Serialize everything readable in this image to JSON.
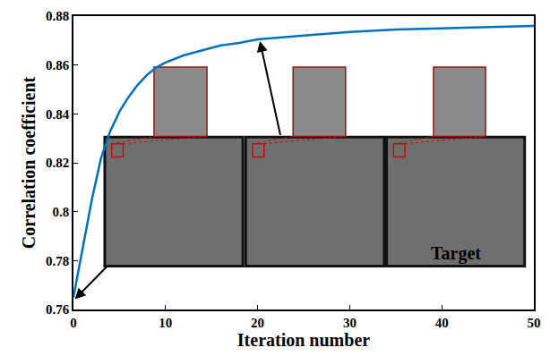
{
  "chart_data": {
    "type": "line",
    "x_label": "Iteration number",
    "y_label": "Correlation coefficient",
    "x": [
      0,
      1,
      2,
      3,
      4,
      5,
      6,
      7,
      8,
      9,
      10,
      12,
      14,
      16,
      18,
      20,
      25,
      30,
      35,
      40,
      45,
      50
    ],
    "series": [
      {
        "color": "#0072bd",
        "values": [
          0.765,
          0.785,
          0.805,
          0.822,
          0.833,
          0.841,
          0.847,
          0.852,
          0.856,
          0.859,
          0.861,
          0.864,
          0.866,
          0.868,
          0.869,
          0.8705,
          0.872,
          0.8735,
          0.8745,
          0.875,
          0.8755,
          0.876
        ]
      }
    ],
    "xlim": [
      0,
      50
    ],
    "xticks": [
      0,
      10,
      20,
      30,
      40,
      50
    ],
    "ylim": [
      0.76,
      0.88
    ],
    "yticks": [
      0.76,
      0.78,
      0.8,
      0.82,
      0.84,
      0.86,
      0.88
    ],
    "grid": false,
    "annotations": [
      "Target"
    ]
  }
}
